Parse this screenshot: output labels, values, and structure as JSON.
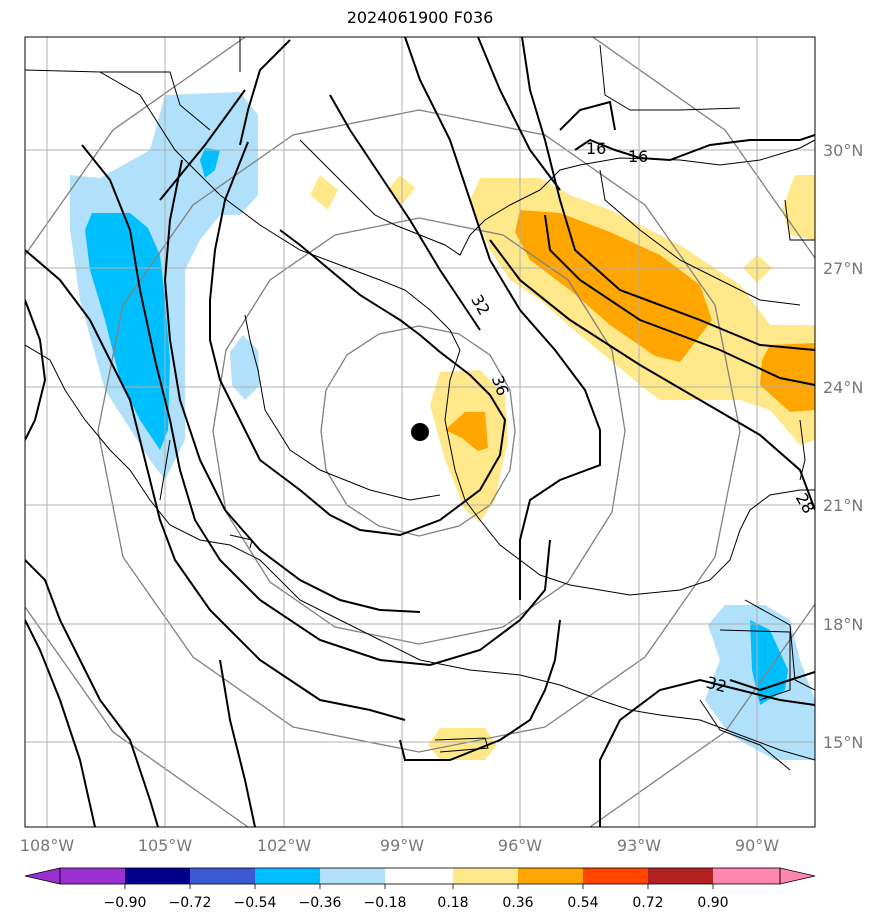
{
  "title": "2024061900 F036",
  "lon_ticks": [
    "108°W",
    "105°W",
    "102°W",
    "99°W",
    "96°W",
    "93°W",
    "90°W"
  ],
  "lat_ticks": [
    "30°N",
    "27°N",
    "24°N",
    "21°N",
    "18°N",
    "15°N"
  ],
  "contour_labels": [
    "16",
    "16",
    "32",
    "36",
    "28",
    "32"
  ],
  "colorbar": {
    "labels": [
      "−0.90",
      "−0.72",
      "−0.54",
      "−0.36",
      "−0.18",
      "0.18",
      "0.36",
      "0.54",
      "0.72",
      "0.90"
    ],
    "colors": [
      "#9b30d0",
      "#00008b",
      "#3a5bd0",
      "#00bfff",
      "#b0e0fa",
      "#ffffff",
      "#ffe88a",
      "#ffa500",
      "#ff4500",
      "#b22222",
      "#ff86b0",
      "#ff86b0"
    ]
  },
  "colors": {
    "light_blue": "#b0e0fa",
    "blue": "#00bfff",
    "yellow": "#ffe88a",
    "orange": "#ffa500"
  }
}
